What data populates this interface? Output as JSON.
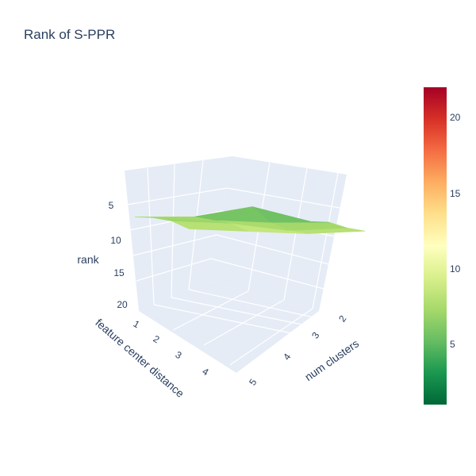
{
  "chart_data": {
    "type": "surface",
    "title": "Rank of S-PPR",
    "x_axis": {
      "label": "num clusters",
      "ticks": [
        "2",
        "3",
        "4",
        "5"
      ]
    },
    "y_axis": {
      "label": "feature center distance",
      "ticks": [
        "1",
        "2",
        "3",
        "4"
      ]
    },
    "z_axis": {
      "label": "rank",
      "ticks": [
        "5",
        "10",
        "15",
        "20"
      ],
      "reversed": true,
      "range": [
        1,
        22
      ]
    },
    "surface": {
      "x": [
        2,
        3,
        4,
        5
      ],
      "y": [
        1,
        2,
        3,
        4
      ],
      "z": [
        [
          8,
          7,
          2,
          7
        ],
        [
          7,
          7,
          7,
          6
        ],
        [
          7,
          7,
          9,
          7
        ],
        [
          9,
          9,
          9,
          7
        ]
      ]
    },
    "colorscale": {
      "name": "RdYlGn reversed",
      "min": 1,
      "max": 22,
      "ticks": [
        "5",
        "10",
        "15",
        "20"
      ]
    },
    "grid": true,
    "colorbar_position": "right"
  },
  "colors": {
    "background_scene": "#e5ecf6",
    "grid": "#ffffff",
    "text": "#2a3f5f"
  }
}
